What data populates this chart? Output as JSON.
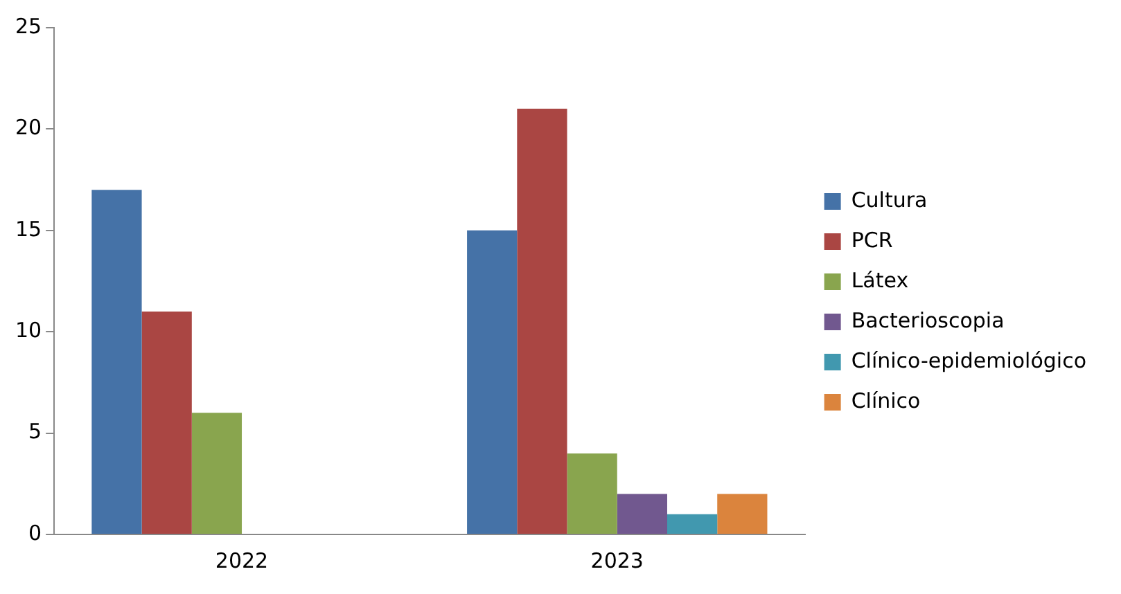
{
  "chart_data": {
    "type": "bar",
    "categories": [
      "2022",
      "2023"
    ],
    "series": [
      {
        "name": "Cultura",
        "color": "#4572a7",
        "values": [
          17,
          15
        ]
      },
      {
        "name": "PCR",
        "color": "#aa4643",
        "values": [
          11,
          21
        ]
      },
      {
        "name": "Látex",
        "color": "#89a54e",
        "values": [
          6,
          4
        ]
      },
      {
        "name": "Bacterioscopia",
        "color": "#71588f",
        "values": [
          0,
          2
        ]
      },
      {
        "name": "Clínico-epidemiológico",
        "color": "#4198af",
        "values": [
          0,
          1
        ]
      },
      {
        "name": "Clínico",
        "color": "#db843d",
        "values": [
          0,
          2
        ]
      }
    ],
    "ylim": [
      0,
      25
    ],
    "yticks": [
      0,
      5,
      10,
      15,
      20,
      25
    ],
    "grid": false,
    "legend": "right"
  }
}
